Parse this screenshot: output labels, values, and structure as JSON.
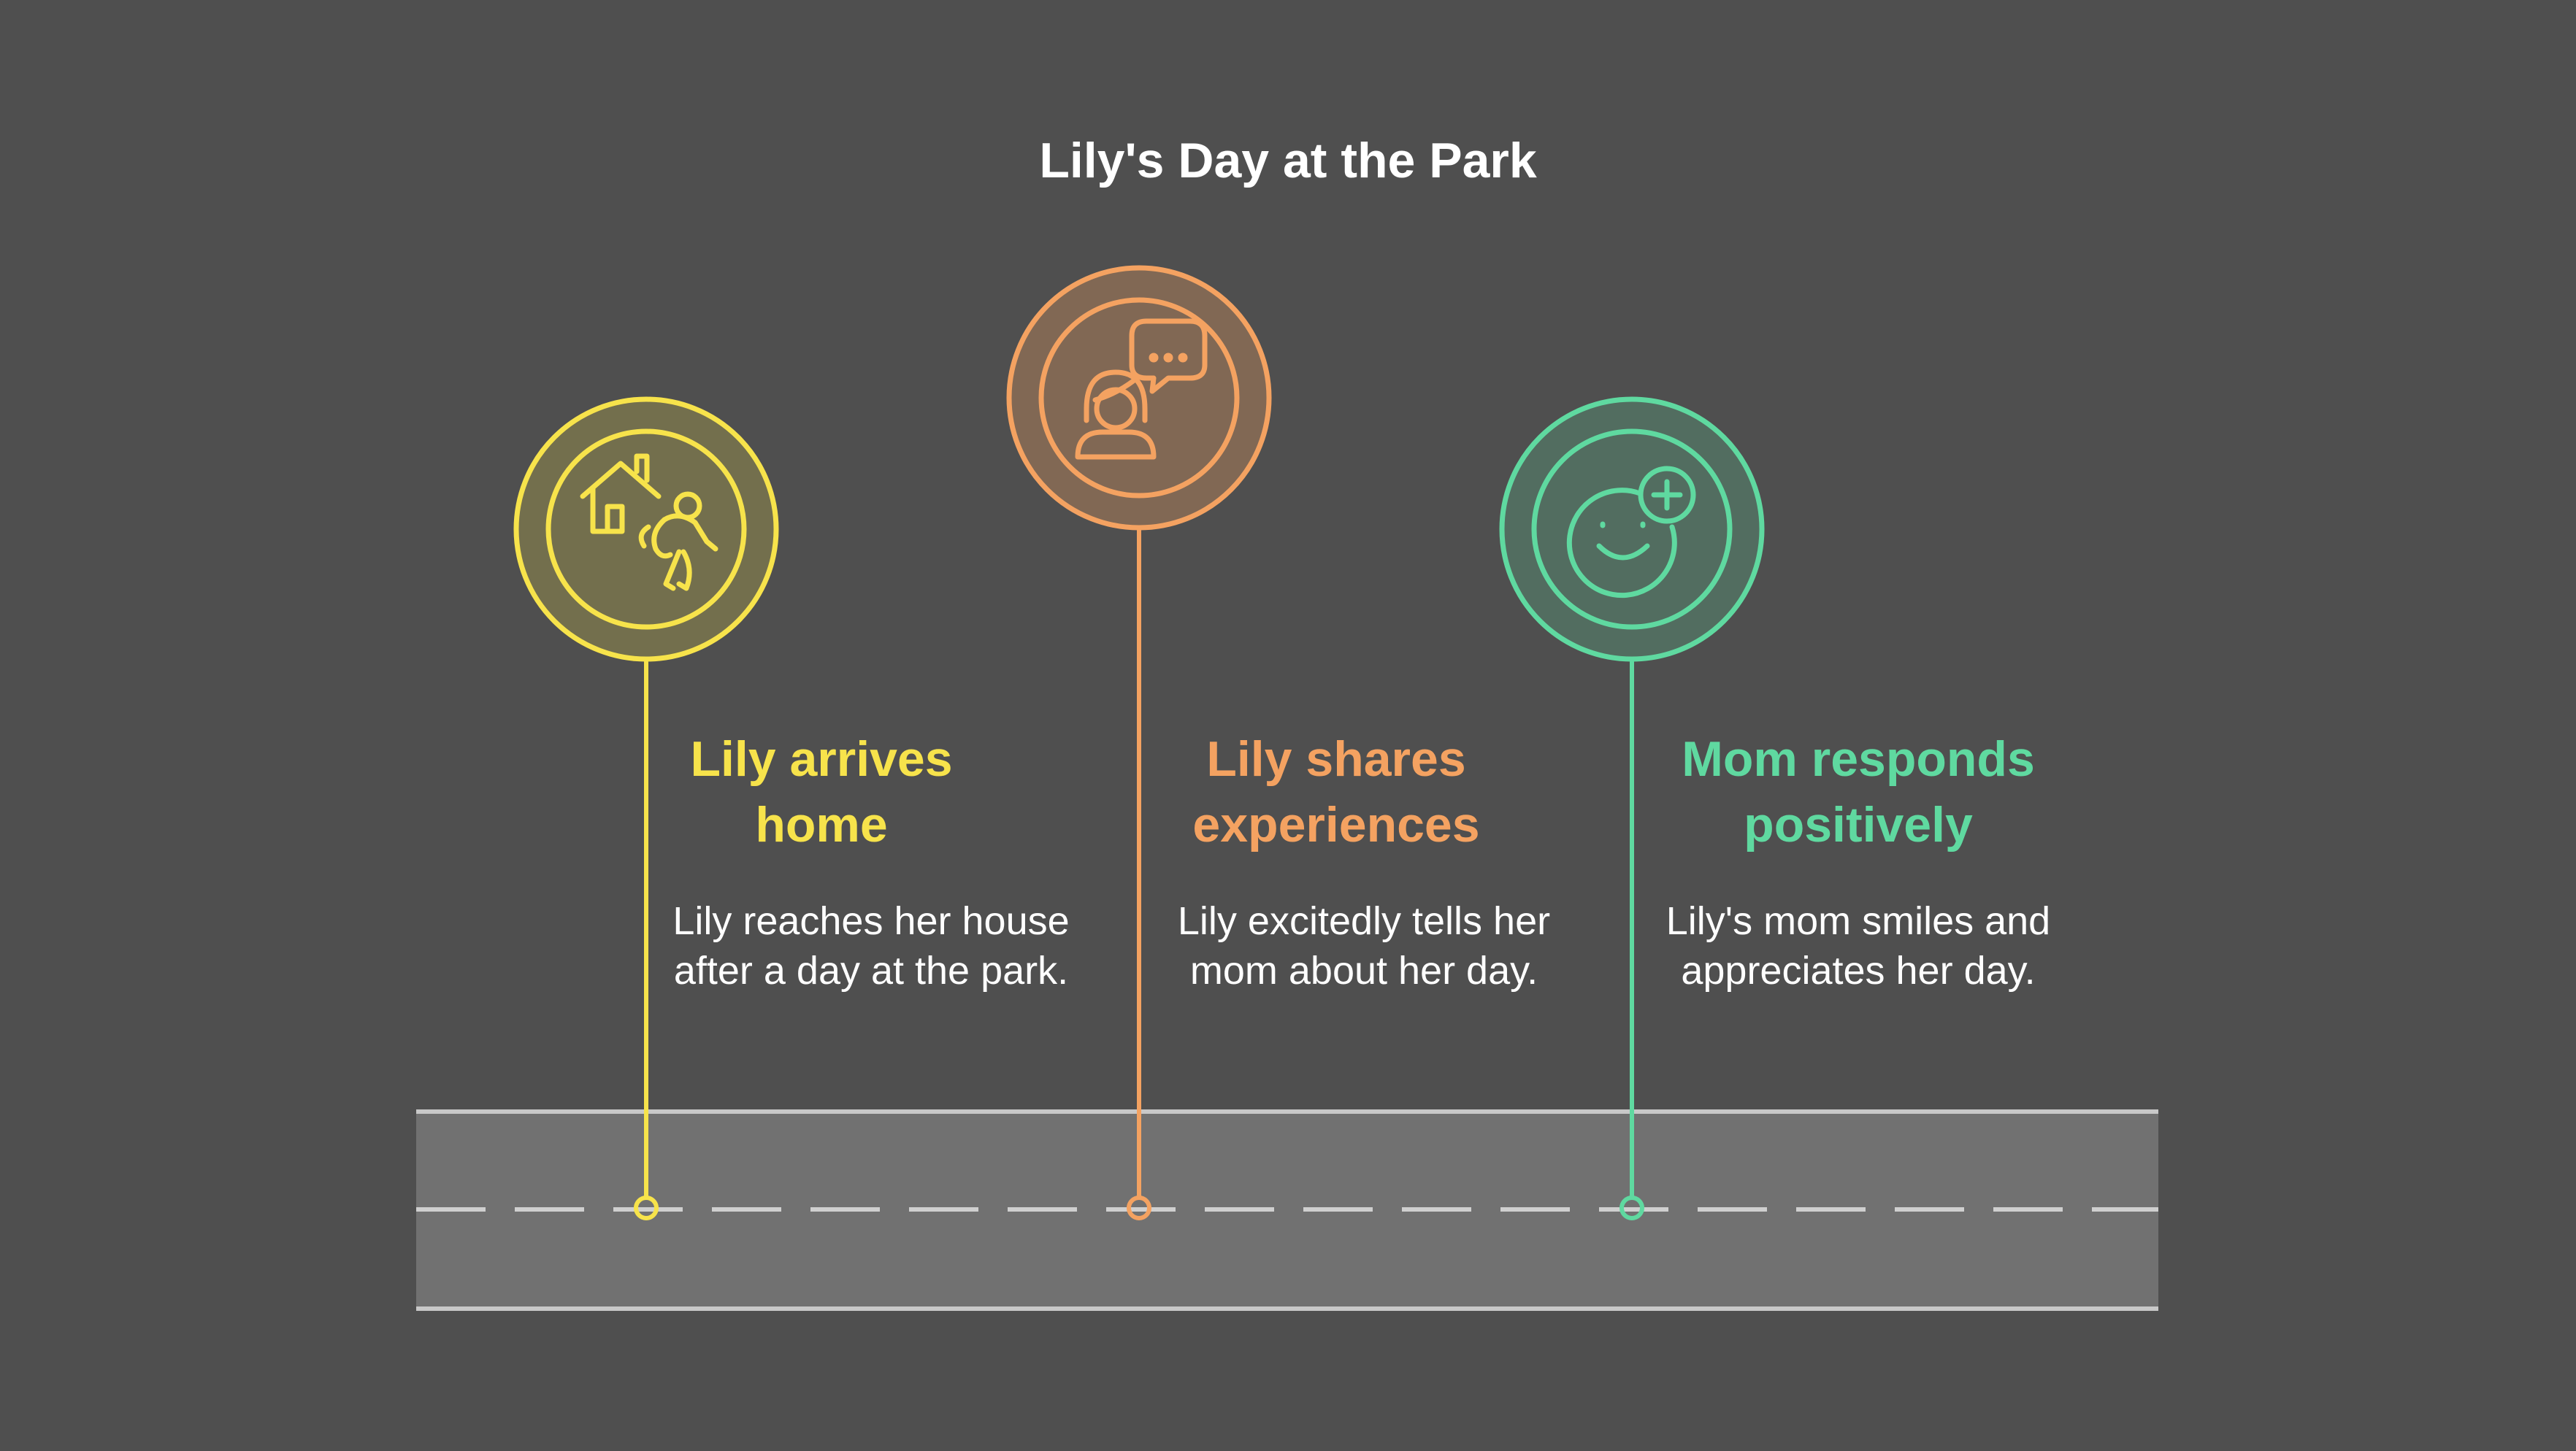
{
  "title": "Lily's Day at the Park",
  "steps": [
    {
      "heading_line1": "Lily arrives",
      "heading_line2": "home",
      "description": "Lily reaches her house after a day at the park.",
      "color": "#f7e34b",
      "icon": "house-child-running-icon"
    },
    {
      "heading_line1": "Lily shares",
      "heading_line2": "experiences",
      "description": "Lily excitedly tells her mom about her day.",
      "color": "#f4a261",
      "icon": "woman-speech-bubble-icon"
    },
    {
      "heading_line1": "Mom responds",
      "heading_line2": "positively",
      "description": "Lily's mom smiles and appreciates her day.",
      "color": "#5fd9a0",
      "icon": "smiley-plus-icon"
    }
  ],
  "colors": {
    "background": "#4f4f4f",
    "road": "#717171",
    "road_edge": "#c8c8c8",
    "road_dash": "#cfcfcf"
  }
}
